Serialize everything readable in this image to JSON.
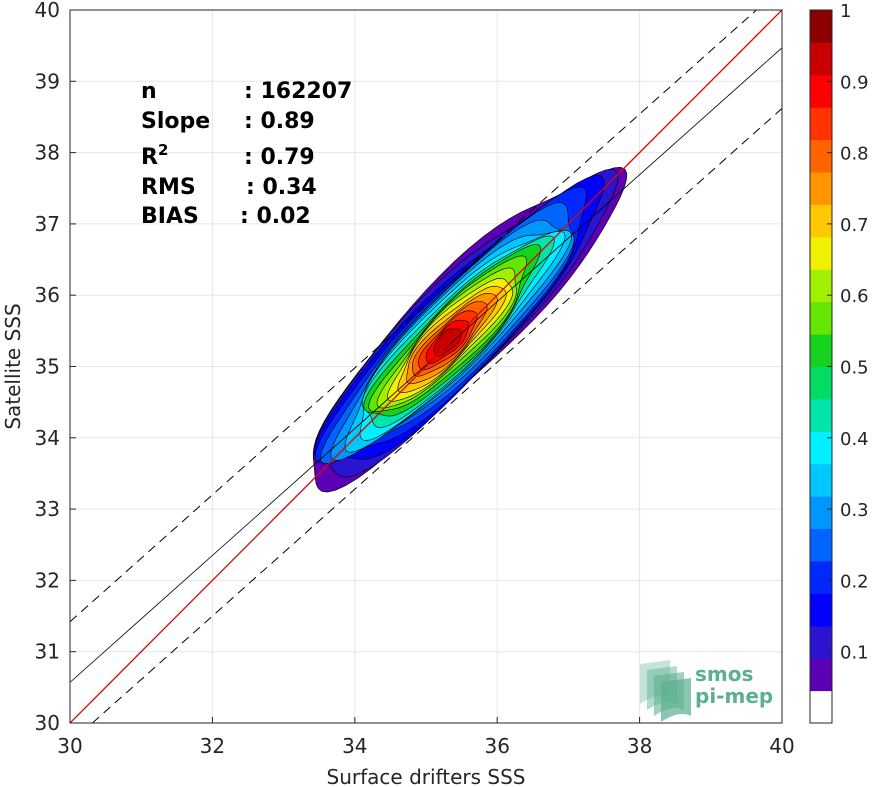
{
  "chart_data": {
    "type": "heatmap",
    "subtype": "density-contour scatter comparison",
    "xlabel": "Surface drifters SSS",
    "ylabel": "Satellite SSS",
    "xlim": [
      30,
      40
    ],
    "ylim": [
      30,
      40
    ],
    "xticks": [
      30,
      32,
      34,
      36,
      38,
      40
    ],
    "yticks": [
      30,
      31,
      32,
      33,
      34,
      35,
      36,
      37,
      38,
      39,
      40
    ],
    "grid": true,
    "stats": {
      "n": {
        "label": "n",
        "value": ": 162207"
      },
      "slope": {
        "label": "Slope",
        "value": ": 0.89"
      },
      "r2": {
        "label": "R",
        "sup": "2",
        "value": ": 0.79"
      },
      "rms": {
        "label": "RMS",
        "value": ": 0.34"
      },
      "bias": {
        "label": "BIAS",
        "value": ": 0.02"
      }
    },
    "lines": {
      "identity": {
        "color": "#e00000",
        "slope": 1,
        "intercept": 0
      },
      "regression": {
        "color": "#000000",
        "slope": 0.89,
        "intercept": 3.87
      },
      "bounds": {
        "color": "#000000",
        "style": "dashed",
        "offset": 0.85
      }
    },
    "density": {
      "axis_center": [
        35.5,
        35.56
      ],
      "length_along_diagonal": 4.3,
      "max_location": [
        35.3,
        35.35
      ],
      "levels": [
        0.05,
        0.1,
        0.15,
        0.2,
        0.25,
        0.3,
        0.35,
        0.4,
        0.45,
        0.5,
        0.55,
        0.6,
        0.65,
        0.7,
        0.75,
        0.8,
        0.85,
        0.9,
        0.95
      ]
    },
    "colorbar": {
      "range": [
        0,
        1
      ],
      "ticks": [
        0.1,
        0.2,
        0.3,
        0.4,
        0.5,
        0.6,
        0.7,
        0.8,
        0.9,
        1
      ],
      "tick_labels": [
        "0.1",
        "0.2",
        "0.3",
        "0.4",
        "0.5",
        "0.6",
        "0.7",
        "0.8",
        "0.9",
        "1"
      ],
      "colors": [
        "#ffffff",
        "#5b00b4",
        "#2a14d2",
        "#0000ff",
        "#0028ff",
        "#0064ff",
        "#0096ff",
        "#00c8ff",
        "#00f0ff",
        "#00e6aa",
        "#00dc64",
        "#14d21e",
        "#64e600",
        "#a0f000",
        "#f0f000",
        "#ffc800",
        "#ff9600",
        "#ff6400",
        "#ff3200",
        "#ff0000",
        "#c80000",
        "#8c0000"
      ]
    }
  },
  "logo": {
    "line1": "smos",
    "line2": "pi-mep",
    "color": "#5cb090"
  }
}
